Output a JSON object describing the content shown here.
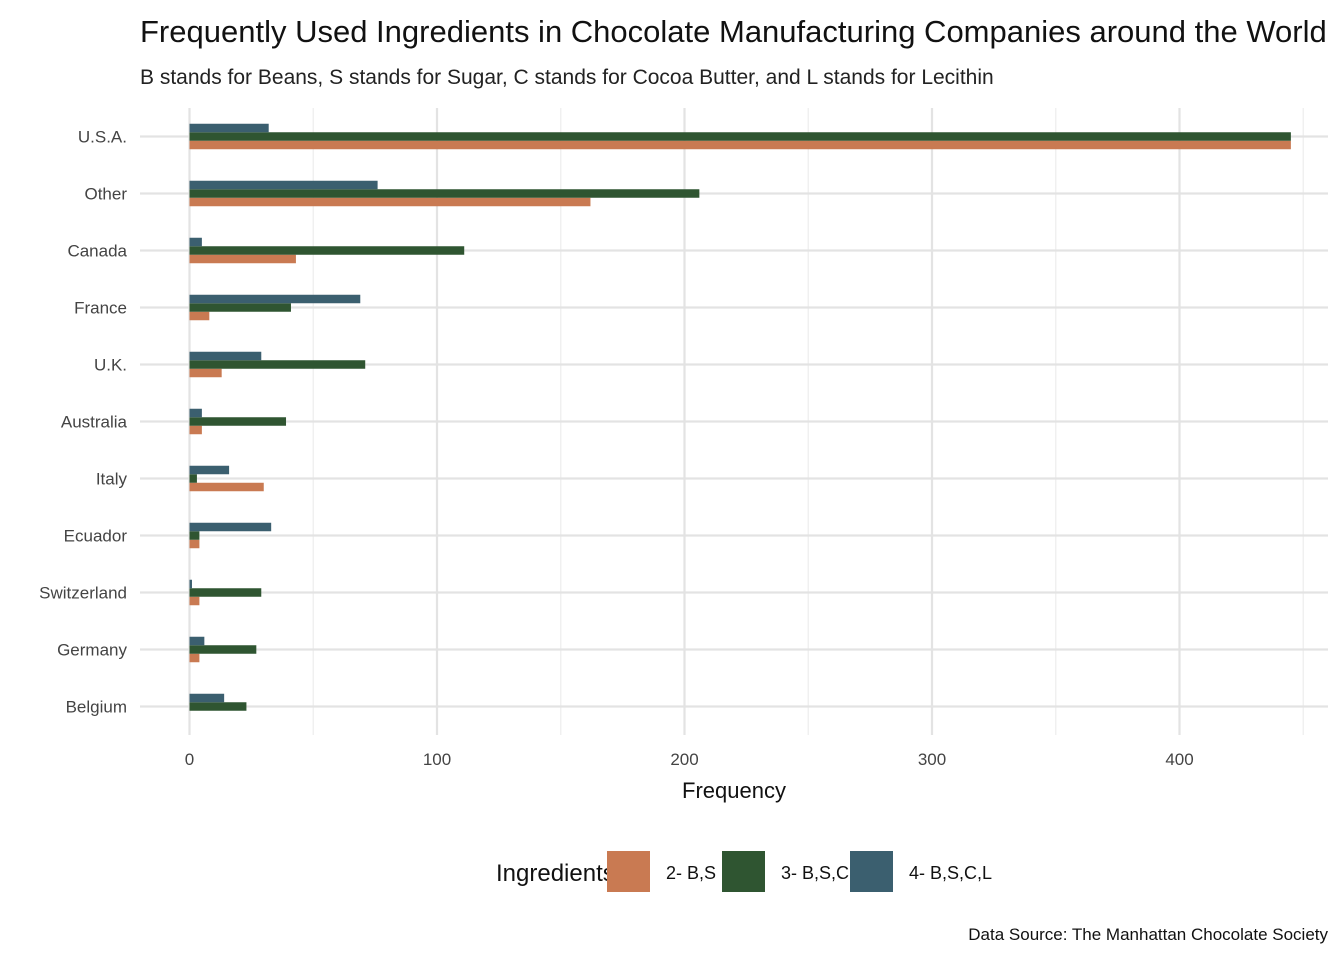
{
  "chart_data": {
    "type": "bar",
    "orientation": "horizontal",
    "title": "Frequently Used Ingredients in Chocolate Manufacturing Companies around the World",
    "subtitle": "B stands for Beans, S stands for Sugar, C stands for Cocoa Butter, and L stands for Lecithin",
    "caption": "Data Source: The Manhattan Chocolate Society",
    "xlabel": "Frequency",
    "ylabel": "",
    "xlim": [
      -20,
      460
    ],
    "x_ticks": [
      0,
      100,
      200,
      300,
      400
    ],
    "grid": "both axes, major and minor",
    "legend_title": "Ingredients",
    "legend_position": "bottom",
    "categories": [
      "U.S.A.",
      "Other",
      "Canada",
      "France",
      "U.K.",
      "Australia",
      "Italy",
      "Ecuador",
      "Switzerland",
      "Germany",
      "Belgium"
    ],
    "series": [
      {
        "name": "2- B,S",
        "color": "#c97a52",
        "values": [
          445,
          162,
          43,
          8,
          13,
          5,
          30,
          4,
          4,
          4,
          0
        ]
      },
      {
        "name": "3- B,S,C",
        "color": "#2f5531",
        "values": [
          445,
          206,
          111,
          41,
          71,
          39,
          3,
          4,
          29,
          27,
          23
        ]
      },
      {
        "name": "4- B,S,C,L",
        "color": "#3b5f6f",
        "values": [
          32,
          76,
          5,
          69,
          29,
          5,
          16,
          33,
          1,
          6,
          14
        ]
      }
    ]
  }
}
